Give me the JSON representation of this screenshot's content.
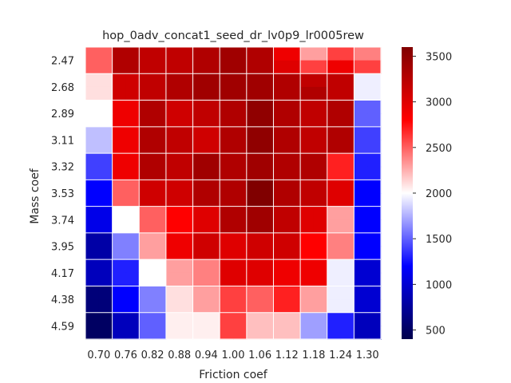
{
  "chart_data": {
    "type": "heatmap",
    "title": "hop_0adv_concat1_seed_dr_lv0p9_lr0005rew",
    "xlabel": "Friction coef",
    "ylabel": "Mass coef",
    "x_categories": [
      "0.70",
      "0.76",
      "0.82",
      "0.88",
      "0.94",
      "1.00",
      "1.06",
      "1.12",
      "1.18",
      "1.24",
      "1.30"
    ],
    "y_categories": [
      "2.47",
      "2.68",
      "2.89",
      "3.11",
      "3.32",
      "3.53",
      "3.74",
      "3.95",
      "4.17",
      "4.38",
      "4.59"
    ],
    "colorbar": {
      "colormap": "seismic",
      "vmin": 400,
      "vmax": 3600,
      "ticks": [
        "500",
        "1000",
        "1500",
        "2000",
        "2500",
        "3000",
        "3500"
      ]
    },
    "grid_resolution": 2,
    "values": [
      [
        2500,
        2500,
        3300,
        3300,
        3200,
        3200,
        3200,
        3200,
        3300,
        3300,
        3400,
        3400,
        3300,
        3300,
        2900,
        2900,
        2300,
        2300,
        2600,
        2600,
        2400,
        2400
      ],
      [
        2500,
        2500,
        3300,
        3300,
        3200,
        3200,
        3200,
        3200,
        3300,
        3300,
        3400,
        3400,
        3300,
        3300,
        3000,
        3000,
        2600,
        2600,
        2900,
        2900,
        2600,
        2600
      ],
      [
        2100,
        2100,
        3100,
        3100,
        3200,
        3200,
        3300,
        3300,
        3400,
        3400,
        3400,
        3400,
        3400,
        3400,
        3300,
        3300,
        3200,
        3200,
        3200,
        3200,
        1950,
        1950
      ],
      [
        2100,
        2100,
        3100,
        3100,
        3200,
        3200,
        3300,
        3300,
        3400,
        3400,
        3400,
        3400,
        3400,
        3400,
        3300,
        3300,
        3300,
        3300,
        3200,
        3200,
        1950,
        1950
      ],
      [
        2000,
        2000,
        2900,
        2900,
        3300,
        3300,
        3100,
        3100,
        3200,
        3200,
        3300,
        3300,
        3500,
        3500,
        3300,
        3300,
        3200,
        3200,
        3300,
        3300,
        1500,
        1500
      ],
      [
        2000,
        2000,
        2900,
        2900,
        3300,
        3300,
        3100,
        3100,
        3200,
        3200,
        3300,
        3300,
        3500,
        3500,
        3300,
        3300,
        3200,
        3200,
        3300,
        3300,
        1500,
        1500
      ],
      [
        1800,
        1800,
        2900,
        2900,
        3300,
        3300,
        3200,
        3200,
        3100,
        3100,
        3300,
        3300,
        3500,
        3500,
        3300,
        3300,
        3200,
        3200,
        3300,
        3300,
        1400,
        1400
      ],
      [
        1800,
        1800,
        2900,
        2900,
        3300,
        3300,
        3200,
        3200,
        3100,
        3100,
        3300,
        3300,
        3500,
        3500,
        3300,
        3300,
        3200,
        3200,
        3300,
        3300,
        1400,
        1400
      ],
      [
        1400,
        1400,
        2900,
        2900,
        3300,
        3300,
        3200,
        3200,
        3400,
        3400,
        3300,
        3300,
        3400,
        3400,
        3300,
        3300,
        3300,
        3300,
        2700,
        2700,
        1300,
        1300
      ],
      [
        1400,
        1400,
        2900,
        2900,
        3300,
        3300,
        3200,
        3200,
        3400,
        3400,
        3300,
        3300,
        3400,
        3400,
        3300,
        3300,
        3300,
        3300,
        2700,
        2700,
        1300,
        1300
      ],
      [
        1200,
        1200,
        2500,
        2500,
        3100,
        3100,
        3100,
        3100,
        3300,
        3300,
        3300,
        3300,
        3600,
        3600,
        3300,
        3300,
        3200,
        3200,
        3000,
        3000,
        1200,
        1200
      ],
      [
        1200,
        1200,
        2500,
        2500,
        3100,
        3100,
        3100,
        3100,
        3300,
        3300,
        3300,
        3300,
        3600,
        3600,
        3300,
        3300,
        3200,
        3200,
        3000,
        3000,
        1200,
        1200
      ],
      [
        1100,
        1100,
        2000,
        2000,
        2500,
        2500,
        2800,
        2800,
        3000,
        3000,
        3300,
        3300,
        3400,
        3400,
        3200,
        3200,
        3000,
        3000,
        2300,
        2300,
        1200,
        1200
      ],
      [
        1100,
        1100,
        2000,
        2000,
        2500,
        2500,
        2800,
        2800,
        3000,
        3000,
        3300,
        3300,
        3400,
        3400,
        3200,
        3200,
        3000,
        3000,
        2300,
        2300,
        1200,
        1200
      ],
      [
        800,
        800,
        1600,
        1600,
        2300,
        2300,
        2900,
        2900,
        3100,
        3100,
        3000,
        3000,
        3100,
        3100,
        3100,
        3100,
        2800,
        2800,
        2400,
        2400,
        1200,
        1200
      ],
      [
        800,
        800,
        1600,
        1600,
        2300,
        2300,
        2900,
        2900,
        3100,
        3100,
        3000,
        3000,
        3100,
        3100,
        3100,
        3100,
        2800,
        2800,
        2400,
        2400,
        1200,
        1200
      ],
      [
        900,
        900,
        1300,
        1300,
        2000,
        2000,
        2300,
        2300,
        2400,
        2400,
        3000,
        3000,
        3000,
        3000,
        2900,
        2900,
        2900,
        2900,
        1950,
        1950,
        1000,
        1000
      ],
      [
        900,
        900,
        1300,
        1300,
        2000,
        2000,
        2300,
        2300,
        2400,
        2400,
        3000,
        3000,
        3000,
        3000,
        2900,
        2900,
        2900,
        2900,
        1950,
        1950,
        1000,
        1000
      ],
      [
        600,
        600,
        1200,
        1200,
        1600,
        1600,
        2100,
        2100,
        2300,
        2300,
        2600,
        2600,
        2500,
        2500,
        2700,
        2700,
        2300,
        2300,
        1950,
        1950,
        1000,
        1000
      ],
      [
        600,
        600,
        1200,
        1200,
        1600,
        1600,
        2100,
        2100,
        2300,
        2300,
        2600,
        2600,
        2500,
        2500,
        2700,
        2700,
        2300,
        2300,
        1950,
        1950,
        1000,
        1000
      ],
      [
        500,
        500,
        900,
        900,
        1500,
        1500,
        2050,
        2050,
        2050,
        2050,
        2600,
        2600,
        2200,
        2200,
        2200,
        2200,
        1700,
        1700,
        1300,
        1300,
        900,
        900
      ],
      [
        500,
        500,
        900,
        900,
        1500,
        1500,
        2050,
        2050,
        2050,
        2050,
        2600,
        2600,
        2200,
        2200,
        2200,
        2200,
        1700,
        1700,
        1300,
        1300,
        900,
        900
      ]
    ]
  }
}
